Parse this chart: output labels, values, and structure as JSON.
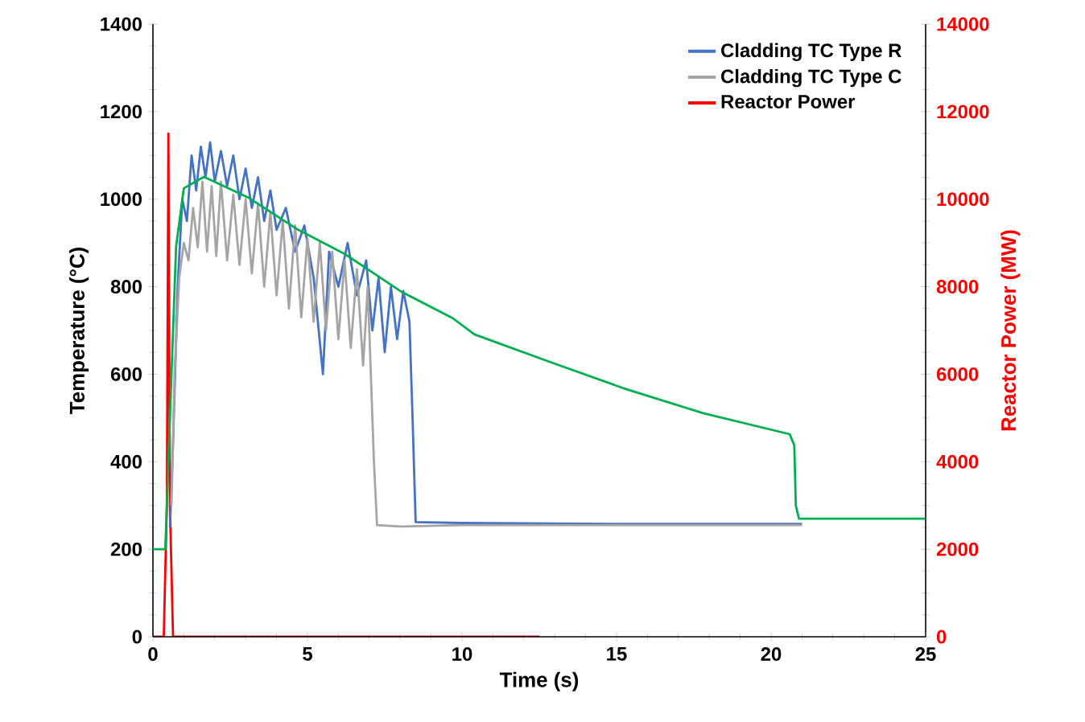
{
  "chart_data": {
    "type": "line",
    "xlabel": "Time (s)",
    "ylabel": "Temperature (°C)",
    "y2label": "Reactor Power (MW)",
    "xlim": [
      0,
      25
    ],
    "xticks": [
      0,
      5,
      10,
      15,
      20,
      25
    ],
    "ylim": [
      0,
      1400
    ],
    "yticks": [
      0,
      200,
      400,
      600,
      800,
      1000,
      1200,
      1400
    ],
    "y2lim": [
      0,
      14000
    ],
    "y2ticks": [
      0,
      2000,
      4000,
      6000,
      8000,
      10000,
      12000,
      14000
    ],
    "legend": "top right",
    "marker": "none",
    "line_style": "solid",
    "grid": false,
    "series": [
      {
        "name": "Cladding TC Type R",
        "color": "#4472c4",
        "x": [
          0.55,
          0.65,
          0.8,
          0.95,
          1.1,
          1.25,
          1.4,
          1.55,
          1.7,
          1.85,
          2.0,
          2.2,
          2.4,
          2.6,
          2.8,
          3.0,
          3.2,
          3.4,
          3.6,
          3.8,
          4.0,
          4.3,
          4.6,
          4.9,
          5.2,
          5.5,
          5.7,
          6.0,
          6.3,
          6.6,
          6.9,
          7.1,
          7.3,
          7.5,
          7.7,
          7.9,
          8.1,
          8.3,
          8.4,
          8.5,
          10,
          15,
          21
        ],
        "values": [
          250,
          440,
          800,
          1000,
          950,
          1100,
          1020,
          1120,
          1050,
          1130,
          1040,
          1110,
          1030,
          1100,
          1000,
          1070,
          980,
          1050,
          950,
          1020,
          930,
          980,
          880,
          940,
          820,
          600,
          880,
          800,
          900,
          780,
          860,
          700,
          820,
          650,
          800,
          680,
          790,
          720,
          500,
          262,
          260,
          258,
          258
        ]
      },
      {
        "name": "Cladding TC Type C",
        "color": "#a5a5a5",
        "x": [
          0.6,
          0.7,
          0.85,
          1.0,
          1.15,
          1.3,
          1.45,
          1.6,
          1.75,
          1.9,
          2.05,
          2.2,
          2.4,
          2.6,
          2.8,
          3.0,
          3.2,
          3.4,
          3.6,
          3.8,
          4.0,
          4.2,
          4.4,
          4.6,
          4.8,
          5.0,
          5.2,
          5.4,
          5.6,
          5.8,
          6.0,
          6.2,
          6.4,
          6.6,
          6.8,
          6.95,
          7.05,
          7.15,
          7.25,
          8,
          10,
          15,
          21
        ],
        "values": [
          300,
          600,
          820,
          900,
          860,
          980,
          890,
          1040,
          880,
          1030,
          870,
          1040,
          860,
          1010,
          850,
          1000,
          830,
          990,
          800,
          970,
          780,
          950,
          750,
          940,
          730,
          910,
          720,
          900,
          700,
          880,
          680,
          860,
          660,
          840,
          620,
          800,
          600,
          400,
          255,
          252,
          255,
          255,
          255
        ]
      },
      {
        "color": "#00b050",
        "x": [
          0,
          0.4,
          0.55,
          0.75,
          1.0,
          1.65,
          3.1,
          4.7,
          6.2,
          6.9,
          8.05,
          9.7,
          10.4,
          12.85,
          15.3,
          17.8,
          20.6,
          20.75,
          20.8,
          20.9,
          25
        ],
        "values": [
          200,
          200,
          500,
          893,
          1025,
          1051,
          1003,
          930,
          875,
          842,
          788,
          728,
          691,
          628,
          566,
          511,
          463,
          438,
          300,
          270,
          270
        ]
      },
      {
        "name": "Reactor Power",
        "color": "#ff0000",
        "axis": "y2",
        "x": [
          0,
          0.35,
          0.45,
          0.5,
          0.55,
          0.65,
          12.5
        ],
        "values": [
          0,
          0,
          3000,
          11500,
          3000,
          0,
          0
        ]
      }
    ]
  }
}
